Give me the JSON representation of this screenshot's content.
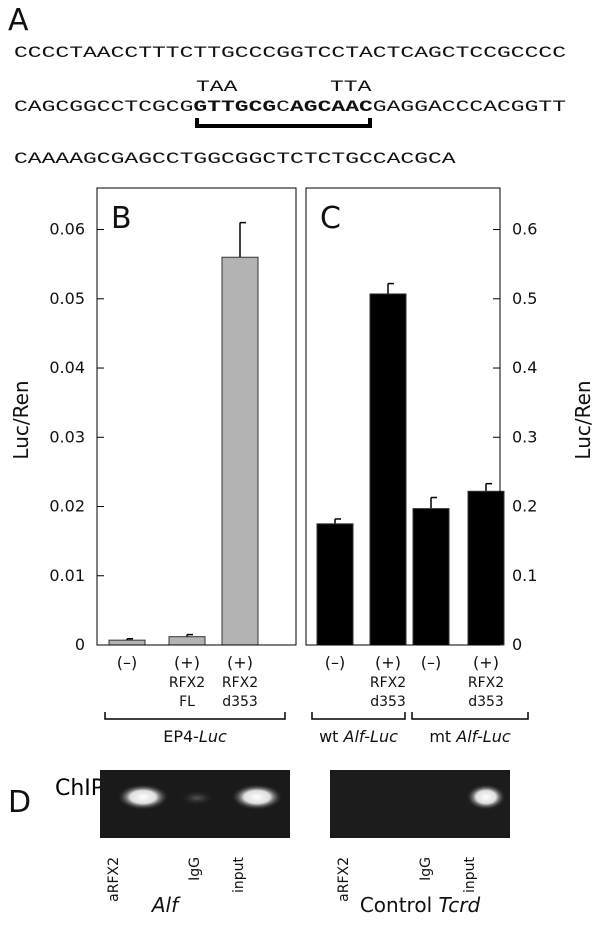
{
  "panel_a": {
    "label": "A",
    "line1": "CCCCTAACCTTTCTTGCCCGGTCCTACTCAGCTCCGCCCC",
    "mutations": [
      "TAA",
      "TTA"
    ],
    "line2": [
      "CAGCGGCCTCGCG",
      "GTTGCG",
      "C",
      "AGCAAC",
      "GAGGACCCACGGTT"
    ],
    "line3": "CAAAAGCGAGCCTGGCGGCTCTCTGCCACGCA"
  },
  "chart_data": [
    {
      "type": "bar",
      "panel": "B",
      "y_label": "Luc/Ren",
      "yaxis_side": "left",
      "color": "#b3b3b3",
      "categories": [
        [
          "(–)"
        ],
        [
          "(+)",
          "RFX2",
          "FL"
        ],
        [
          "(+)",
          "RFX2",
          "d353"
        ]
      ],
      "values": [
        0.0007,
        0.0012,
        0.056
      ],
      "errors": [
        0.0002,
        0.0003,
        0.005
      ],
      "groups": [
        {
          "text": "EP4-",
          "italic": "Luc"
        }
      ],
      "ylim": [
        0,
        0.066
      ],
      "yticks": [
        0,
        0.01,
        0.02,
        0.03,
        0.04,
        0.05,
        0.06
      ]
    },
    {
      "type": "bar",
      "panel": "C",
      "y_label": "Luc/Ren",
      "yaxis_side": "right",
      "color": "#000000",
      "categories": [
        [
          "(–)"
        ],
        [
          "(+)",
          "RFX2",
          "d353"
        ],
        [
          "(–)"
        ],
        [
          "(+)",
          "RFX2",
          "d353"
        ]
      ],
      "values": [
        0.175,
        0.507,
        0.197,
        0.222
      ],
      "errors": [
        0.007,
        0.015,
        0.016,
        0.011
      ],
      "groups": [
        {
          "text": "wt ",
          "italic": "Alf-Luc"
        },
        {
          "text": "mt ",
          "italic": "Alf-Luc"
        }
      ],
      "ylim": [
        0,
        0.66
      ],
      "yticks": [
        0,
        0.1,
        0.2,
        0.3,
        0.4,
        0.5,
        0.6
      ]
    }
  ],
  "panel_d": {
    "label": "D",
    "title": "ChIP",
    "gels": [
      {
        "lanes": [
          "aRFX2",
          "IgG",
          "input"
        ],
        "caption": {
          "text": "",
          "italic": "Alf"
        }
      },
      {
        "lanes": [
          "aRFX2",
          "IgG",
          "input"
        ],
        "caption": {
          "text": "Control ",
          "italic": "Tcrd"
        }
      }
    ]
  }
}
